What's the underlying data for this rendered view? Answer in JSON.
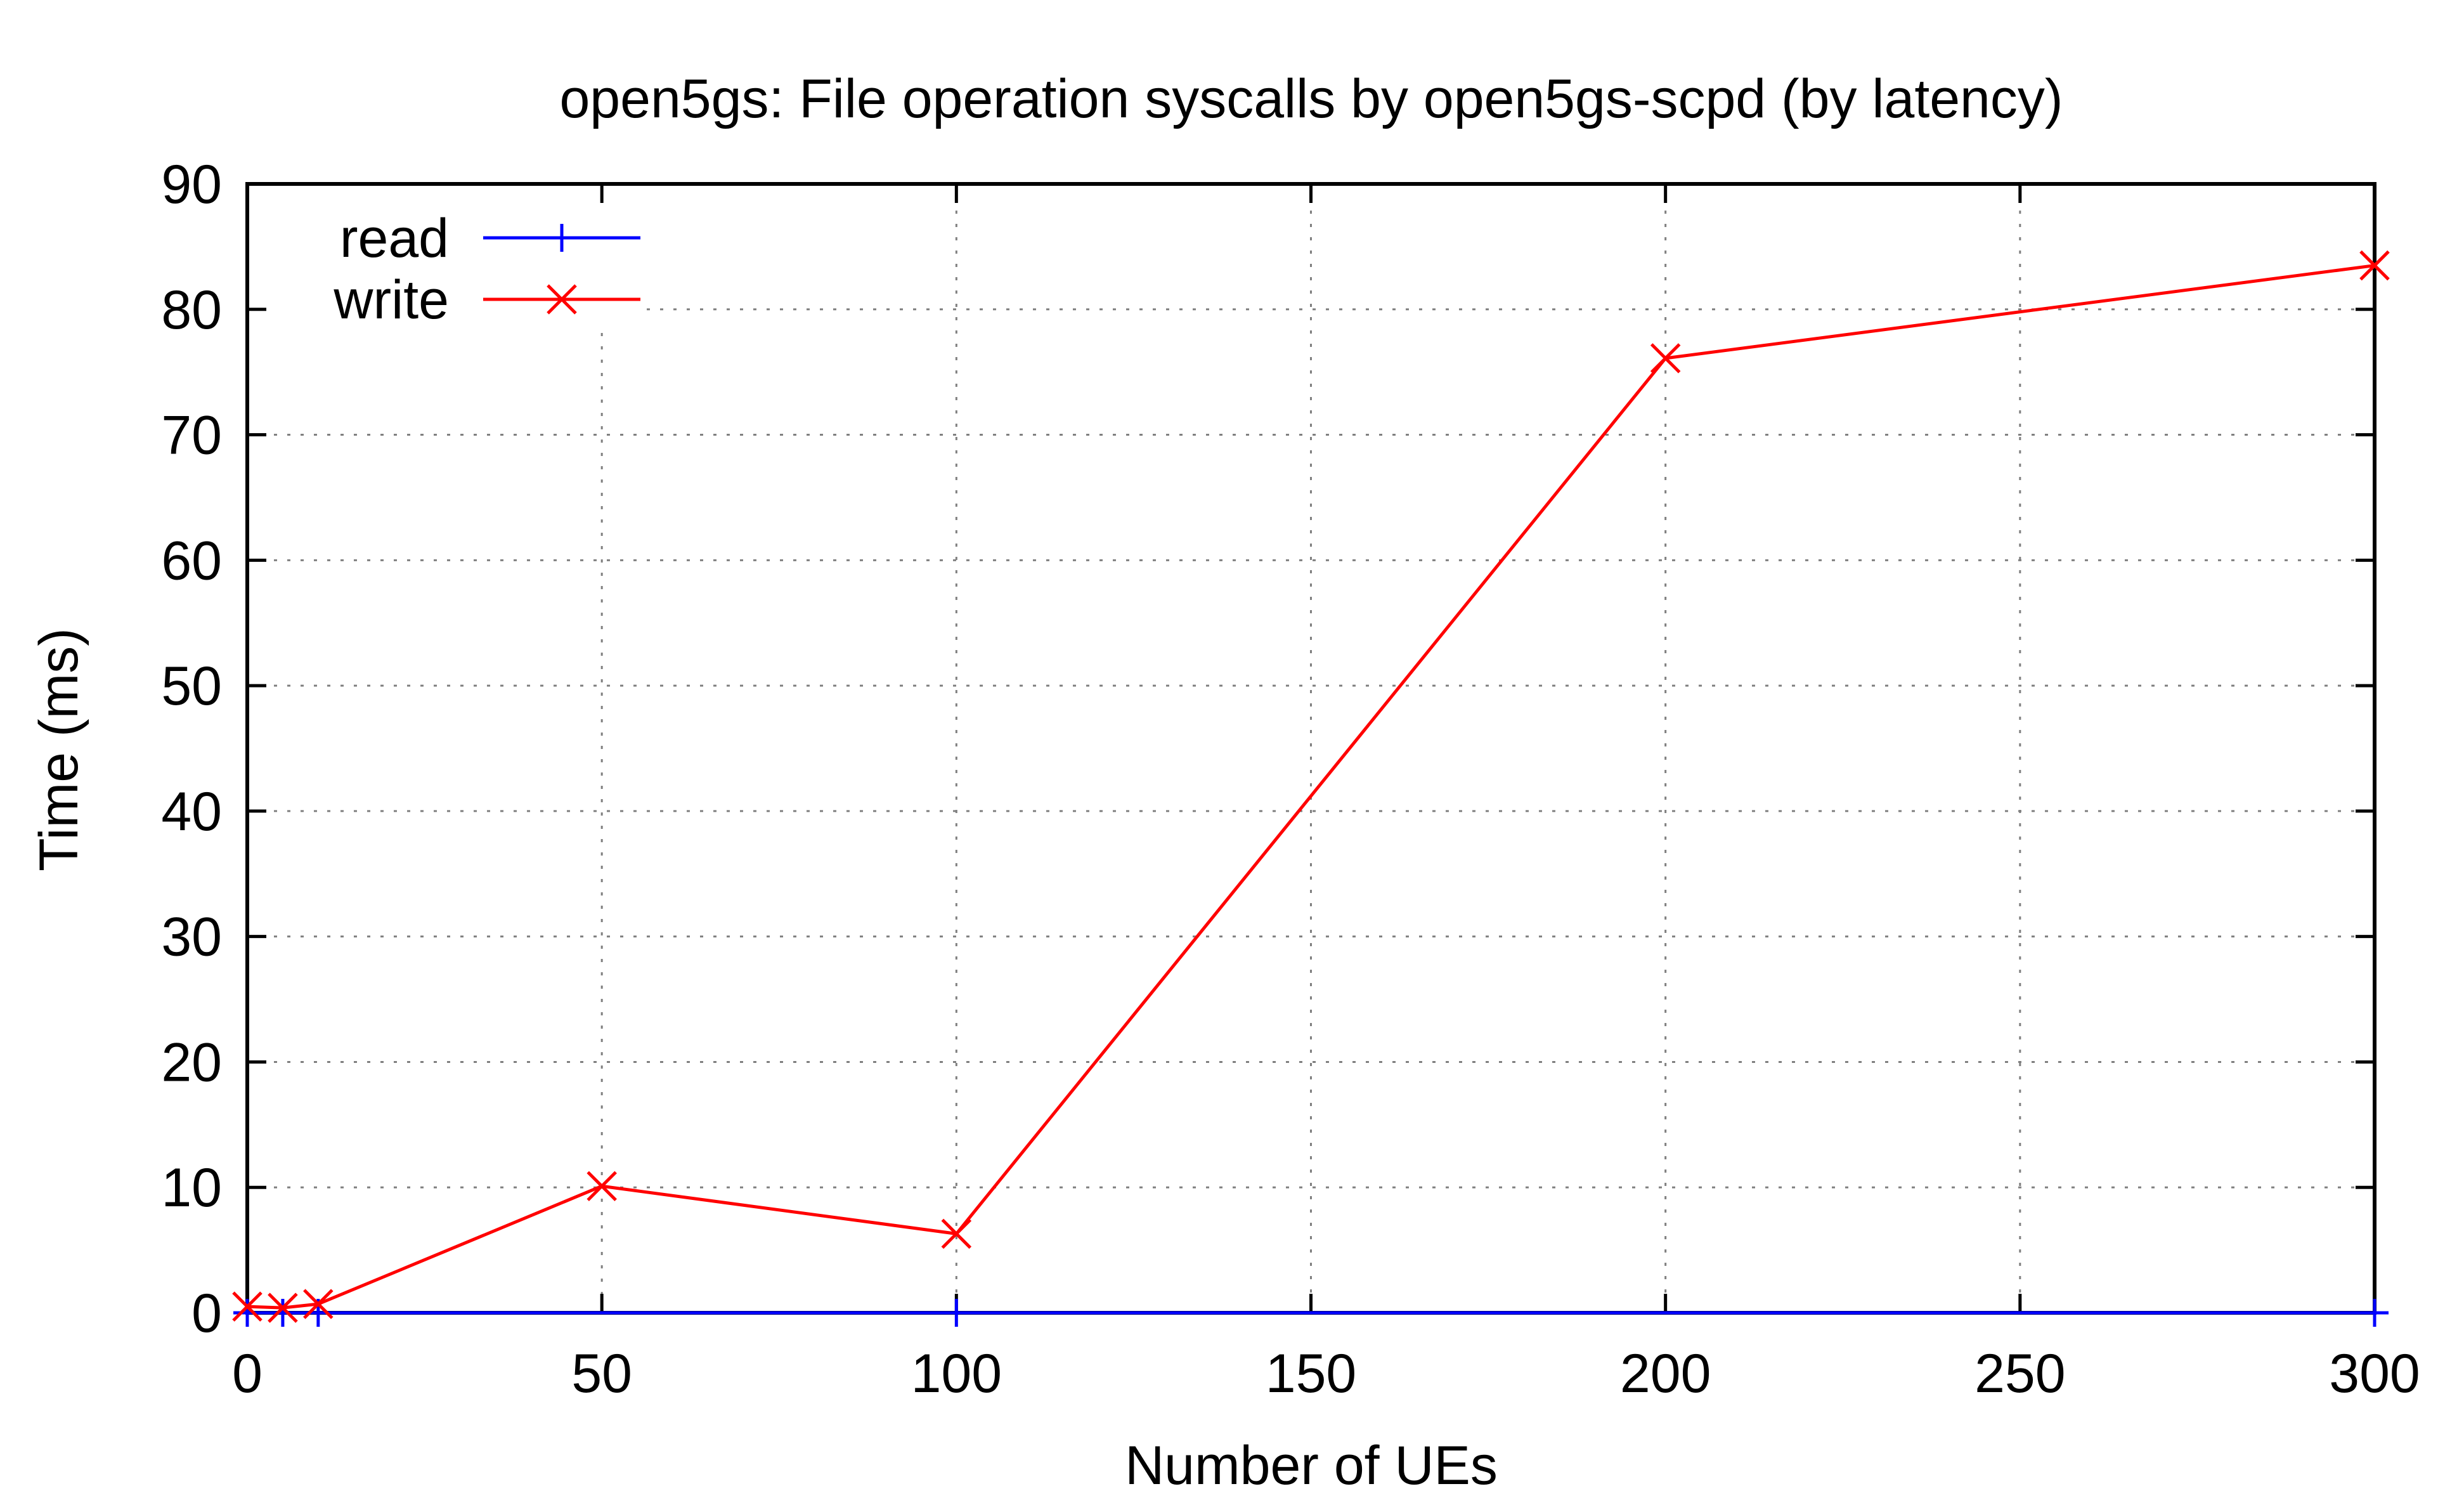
{
  "chart_data": {
    "type": "line",
    "title": "open5gs: File operation syscalls by open5gs-scpd (by latency)",
    "xlabel": "Number of UEs",
    "ylabel": "Time (ms)",
    "xlim": [
      0,
      300
    ],
    "ylim": [
      0,
      90
    ],
    "xticks": [
      0,
      50,
      100,
      150,
      200,
      250,
      300
    ],
    "yticks": [
      0,
      10,
      20,
      30,
      40,
      50,
      60,
      70,
      80,
      90
    ],
    "grid": true,
    "legend_position": "top-left",
    "series": [
      {
        "name": "read",
        "color": "#0000ff",
        "marker": "plus",
        "x": [
          0,
          5,
          10,
          100,
          300
        ],
        "y": [
          0,
          0,
          0,
          0,
          0
        ]
      },
      {
        "name": "write",
        "color": "#ff0000",
        "marker": "cross",
        "x": [
          0,
          5,
          10,
          50,
          100,
          200,
          300
        ],
        "y": [
          0.5,
          0.4,
          0.7,
          10.1,
          6.3,
          76.1,
          83.5
        ]
      }
    ]
  }
}
